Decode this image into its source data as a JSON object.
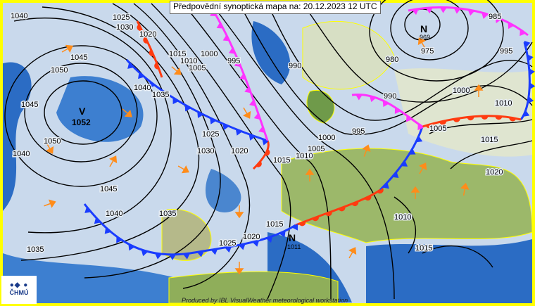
{
  "title": "Předpovědní synoptická mapa na: 20.12.2023 12 UTC",
  "credit": "Produced by IBL VisualWeather meteorological workstation",
  "logo": {
    "text": "ČHMÚ",
    "symbol": "●◆ ●"
  },
  "colors": {
    "cold_front": "#1a3cff",
    "warm_front": "#ff3b10",
    "occluded_front": "#ff33ff",
    "sea": "#2b6cc4",
    "cloud": "#c9d9ec",
    "land": "#8fae5a",
    "border": "#ffff00",
    "wind_arrow": "#ff8c1a"
  },
  "pressure_centers": [
    {
      "type": "V",
      "value": "1052"
    },
    {
      "type": "N",
      "value": "969"
    },
    {
      "type": "N",
      "value": "1011"
    }
  ],
  "isobar_labels": [
    "1040",
    "1025",
    "1030",
    "1020",
    "1015",
    "1010",
    "1005",
    "1000",
    "995",
    "990",
    "985",
    "975",
    "980",
    "995",
    "990",
    "1000",
    "1010",
    "1005",
    "1015",
    "1020",
    "1045",
    "1050",
    "1040",
    "1035",
    "1045",
    "1050",
    "1040",
    "1045",
    "1040",
    "1035",
    "1035",
    "1025",
    "1020",
    "1015",
    "1025",
    "1030",
    "1020",
    "1015",
    "1010",
    "1005",
    "1000",
    "995",
    "1010",
    "1015"
  ]
}
